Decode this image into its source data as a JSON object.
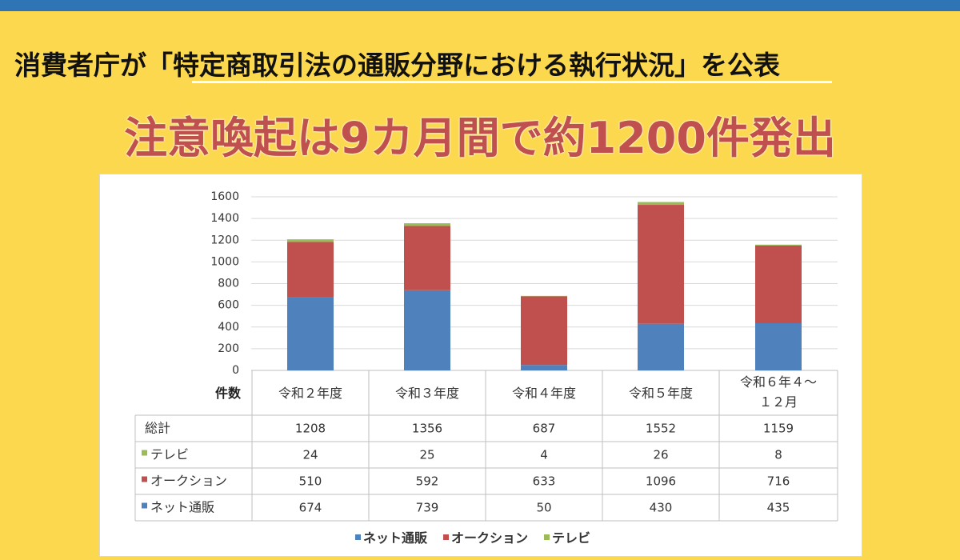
{
  "header": {
    "title": "消費者庁が「特定商取引法の通販分野における執行状況」を公表",
    "subtitle": "注意喚起は9カ月間で約1200件発出"
  },
  "chart_data": {
    "type": "bar",
    "stacked": true,
    "categories": [
      "令和２年度",
      "令和３年度",
      "令和４年度",
      "令和５年度",
      "令和６年４～１２月"
    ],
    "category_lines": [
      [
        "令和２年度"
      ],
      [
        "令和３年度"
      ],
      [
        "令和４年度"
      ],
      [
        "令和５年度"
      ],
      [
        "令和６年４～",
        "１２月"
      ]
    ],
    "ylim": [
      0,
      1600
    ],
    "yticks": [
      0,
      200,
      400,
      600,
      800,
      1000,
      1200,
      1400,
      1600
    ],
    "grid": true,
    "legend_position": "bottom",
    "series": [
      {
        "name": "ネット通販",
        "color": "#4f81bd",
        "values": [
          674,
          739,
          50,
          430,
          435
        ]
      },
      {
        "name": "オークション",
        "color": "#c0504d",
        "values": [
          510,
          592,
          633,
          1096,
          716
        ]
      },
      {
        "name": "テレビ",
        "color": "#9bbb59",
        "values": [
          24,
          25,
          4,
          26,
          8
        ]
      }
    ],
    "table": {
      "header_label": "件数",
      "rows": [
        {
          "label": "総計",
          "values": [
            "1208",
            "1356",
            "687",
            "1552",
            "1159"
          ]
        },
        {
          "label": "テレビ",
          "marker": "#9bbb59",
          "values": [
            "24",
            "25",
            "4",
            "26",
            "8"
          ]
        },
        {
          "label": "オークション",
          "marker": "#c0504d",
          "values": [
            "510",
            "592",
            "633",
            "1096",
            "716"
          ]
        },
        {
          "label": "ネット通販",
          "marker": "#4f81bd",
          "values": [
            "674",
            "739",
            "50",
            "430",
            "435"
          ]
        }
      ]
    }
  }
}
